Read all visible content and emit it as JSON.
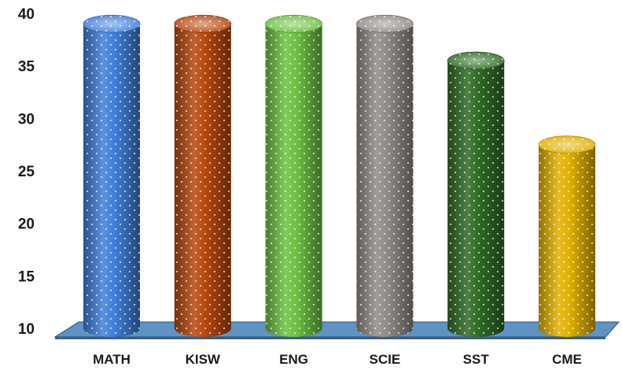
{
  "chart_data": {
    "type": "bar",
    "style": "3d-cylinder",
    "title": "",
    "xlabel": "",
    "ylabel": "",
    "ylim": [
      10,
      40
    ],
    "yticks": [
      10,
      15,
      20,
      25,
      30,
      35,
      40
    ],
    "grid": false,
    "legend": "none",
    "categories": [
      "MATH",
      "KISW",
      "ENG",
      "SCIE",
      "SST",
      "CME"
    ],
    "values": [
      39,
      39,
      39,
      39,
      35.5,
      27.5
    ],
    "colors": [
      "#3f7fd9",
      "#b5470e",
      "#6cc042",
      "#8f8a86",
      "#2f6a25",
      "#e0b000"
    ],
    "floor_color": "#5f93c2"
  }
}
